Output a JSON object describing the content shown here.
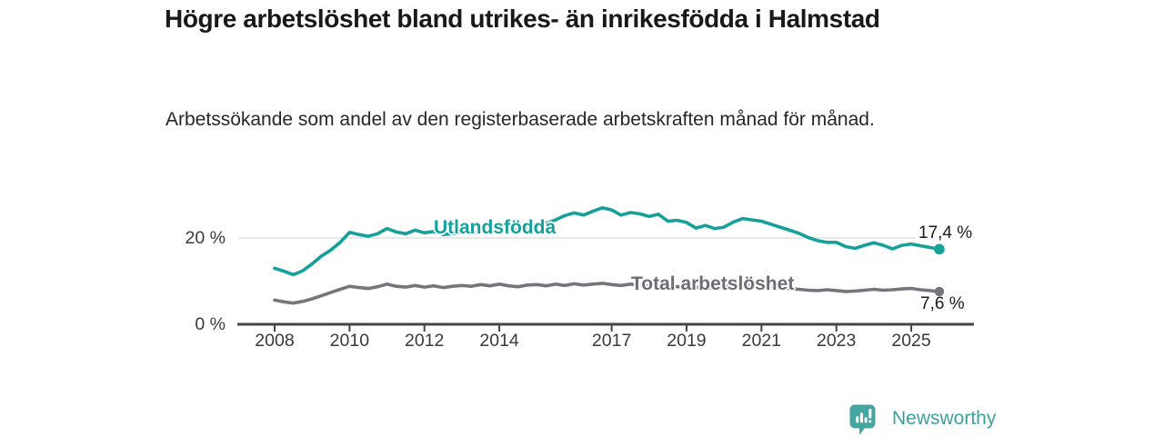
{
  "header": {
    "title": "Högre arbetslöshet bland utrikes- än inrikesfödda i Halmstad",
    "subtitle": "Arbetssökande som andel av den registerbaserade arbetskraften månad för månad."
  },
  "colors": {
    "teal": "#16a09a",
    "gray": "#75757d",
    "gray_label": "#6d6d75",
    "brand_teal": "#45a5a0",
    "wordmark_teal": "#3da19b",
    "gridline": "#d9d9d9",
    "axis": "#454545",
    "title_text": "#191919",
    "axis_text": "#3a3a3a",
    "value_text": "#1b1b1b"
  },
  "chart_data": {
    "type": "line",
    "title": "Högre arbetslöshet bland utrikes- än inrikesfödda i Halmstad",
    "subtitle": "Arbetssökande som andel av den registerbaserade arbetskraften månad för månad.",
    "xlabel": "",
    "ylabel": "",
    "y_unit": "%",
    "ylim": [
      0,
      27.8
    ],
    "grid": "single-horizontal-at-20",
    "legend_position": "inline-on-lines",
    "x": [
      2008.0,
      2008.25,
      2008.5,
      2008.75,
      2009.0,
      2009.25,
      2009.5,
      2009.75,
      2010.0,
      2010.25,
      2010.5,
      2010.75,
      2011.0,
      2011.25,
      2011.5,
      2011.75,
      2012.0,
      2012.25,
      2012.5,
      2012.75,
      2013.0,
      2013.25,
      2013.5,
      2013.75,
      2014.0,
      2014.25,
      2014.5,
      2014.75,
      2015.0,
      2015.25,
      2015.5,
      2015.75,
      2016.0,
      2016.25,
      2016.5,
      2016.75,
      2017.0,
      2017.25,
      2017.5,
      2017.75,
      2018.0,
      2018.25,
      2018.5,
      2018.75,
      2019.0,
      2019.25,
      2019.5,
      2019.75,
      2020.0,
      2020.25,
      2020.5,
      2020.75,
      2021.0,
      2021.25,
      2021.5,
      2021.75,
      2022.0,
      2022.25,
      2022.5,
      2022.75,
      2023.0,
      2023.25,
      2023.5,
      2023.75,
      2024.0,
      2024.25,
      2024.5,
      2024.75,
      2025.0,
      2025.25,
      2025.5,
      2025.75
    ],
    "x_ticks": [
      {
        "x": 2008,
        "label": "2008"
      },
      {
        "x": 2010,
        "label": "2010"
      },
      {
        "x": 2012,
        "label": "2012"
      },
      {
        "x": 2014,
        "label": "2014"
      },
      {
        "x": 2017,
        "label": "2017"
      },
      {
        "x": 2019,
        "label": "2019"
      },
      {
        "x": 2021,
        "label": "2021"
      },
      {
        "x": 2023,
        "label": "2023"
      },
      {
        "x": 2025,
        "label": "2025"
      }
    ],
    "y_ticks": [
      {
        "value": 0,
        "label": "0 %"
      },
      {
        "value": 20,
        "label": "20 %"
      }
    ],
    "series": [
      {
        "name": "Utlandsfödda",
        "color": "#16a09a",
        "end_label": "17,4 %",
        "end_value": 17.4,
        "values": [
          13.0,
          12.3,
          11.5,
          12.4,
          14.0,
          15.8,
          17.2,
          19.0,
          21.3,
          20.8,
          20.4,
          21.0,
          22.2,
          21.4,
          21.0,
          21.8,
          21.2,
          21.5,
          20.8,
          21.0,
          21.4,
          21.2,
          21.6,
          21.4,
          22.0,
          21.6,
          21.9,
          22.4,
          22.8,
          23.4,
          24.2,
          25.2,
          25.8,
          25.3,
          26.2,
          27.0,
          26.5,
          25.3,
          25.9,
          25.6,
          25.0,
          25.5,
          23.9,
          24.1,
          23.6,
          22.3,
          22.9,
          22.2,
          22.5,
          23.7,
          24.5,
          24.2,
          23.9,
          23.2,
          22.5,
          21.8,
          21.1,
          20.1,
          19.4,
          19.0,
          19.0,
          18.0,
          17.6,
          18.3,
          18.9,
          18.3,
          17.5,
          18.3,
          18.6,
          18.2,
          17.8,
          17.4
        ]
      },
      {
        "name": "Total arbetslöshet",
        "color": "#75757d",
        "end_label": "7,6 %",
        "end_value": 7.6,
        "values": [
          5.6,
          5.2,
          4.9,
          5.3,
          5.9,
          6.6,
          7.4,
          8.1,
          8.8,
          8.5,
          8.3,
          8.7,
          9.3,
          8.8,
          8.6,
          9.0,
          8.6,
          8.9,
          8.5,
          8.8,
          9.0,
          8.8,
          9.2,
          8.9,
          9.3,
          8.9,
          8.7,
          9.1,
          9.2,
          8.9,
          9.3,
          9.0,
          9.4,
          9.1,
          9.3,
          9.5,
          9.2,
          9.0,
          9.3,
          9.1,
          8.9,
          9.0,
          8.8,
          8.7,
          8.8,
          8.6,
          8.5,
          8.4,
          8.6,
          9.0,
          9.2,
          9.0,
          8.8,
          8.6,
          8.4,
          8.3,
          8.1,
          7.9,
          7.8,
          8.0,
          7.8,
          7.6,
          7.7,
          7.9,
          8.1,
          7.9,
          8.0,
          8.2,
          8.3,
          8.0,
          7.8,
          7.6
        ]
      }
    ]
  },
  "footer": {
    "brand": "Newsworthy",
    "brand_icon": "newsworthy-speech-bubble-bar-chart-icon"
  }
}
